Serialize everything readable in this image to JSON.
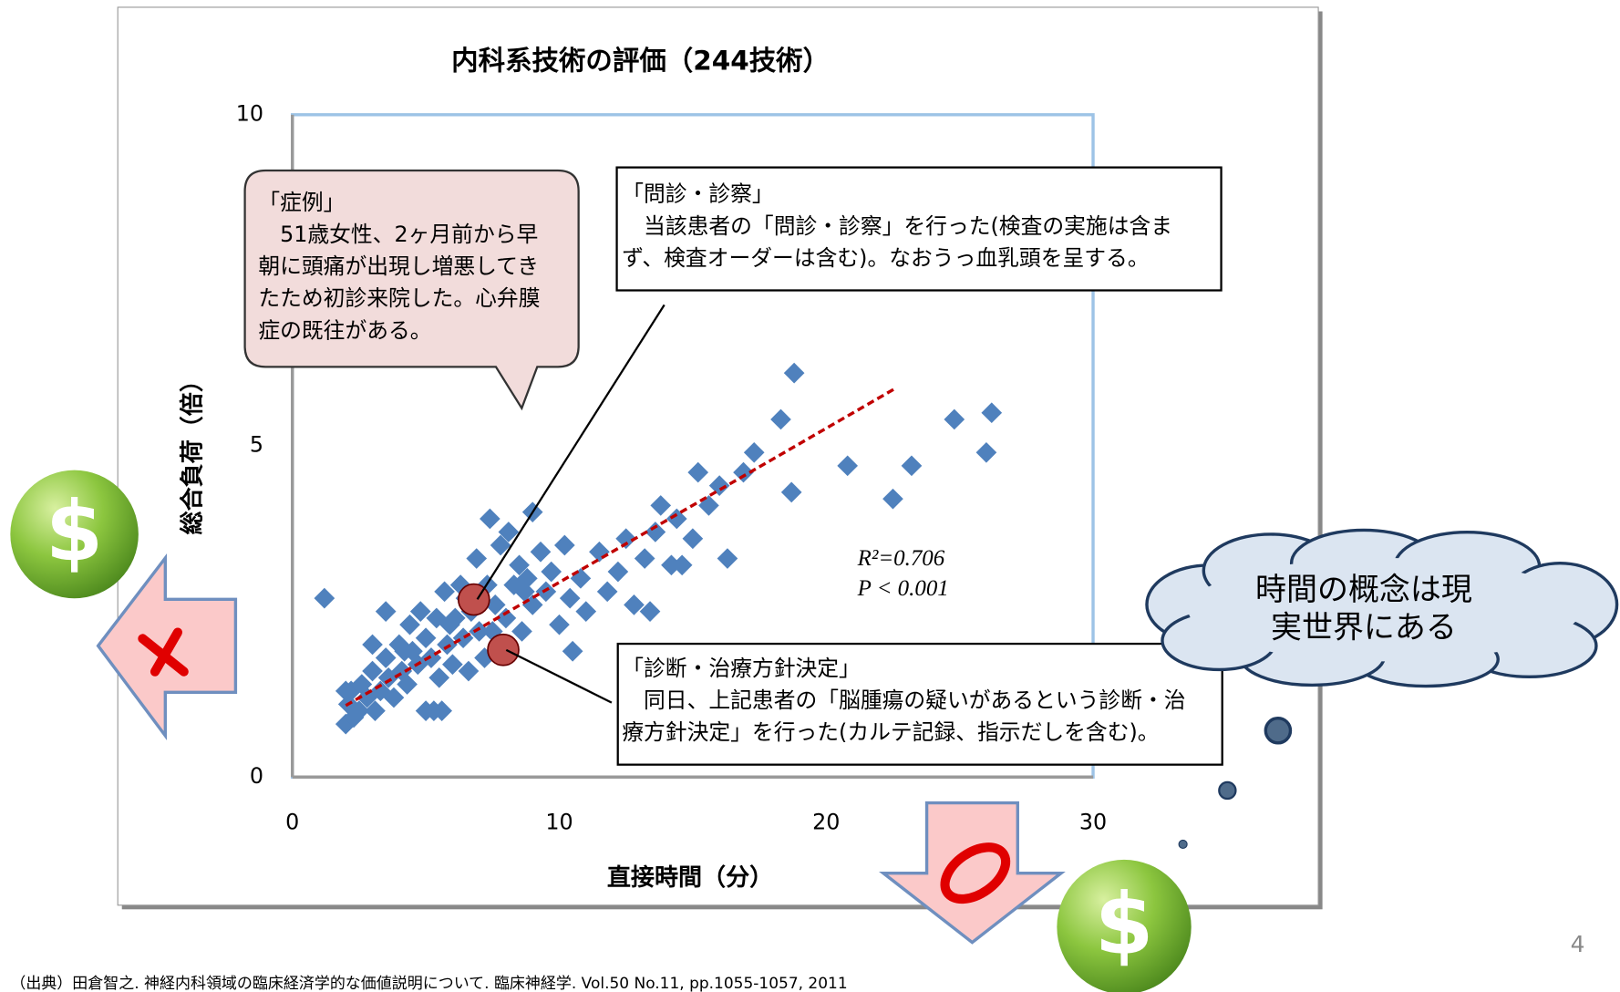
{
  "chart_data": {
    "type": "scatter",
    "title": "内科系技術の評価（244技術）",
    "x_label": "直接時間（分）",
    "y_label": "総合負荷（倍）",
    "xlim": [
      0,
      30
    ],
    "xticks": [
      0,
      10,
      20,
      30
    ],
    "ylim": [
      0,
      10
    ],
    "yticks": [
      0,
      5,
      10
    ],
    "color": "#4f81bd",
    "x": [
      2.0,
      2.1,
      2.2,
      2.0,
      2.3,
      2.5,
      2.6,
      2.8,
      3.0,
      3.1,
      3.3,
      3.5,
      3.6,
      3.8,
      4.0,
      4.1,
      4.3,
      4.4,
      4.5,
      4.7,
      4.8,
      5.0,
      5.0,
      5.3,
      5.6,
      5.2,
      5.4,
      5.5,
      5.7,
      5.8,
      6.0,
      6.1,
      6.3,
      6.4,
      6.6,
      6.7,
      6.9,
      7.0,
      7.2,
      7.3,
      7.4,
      7.6,
      7.8,
      8.0,
      8.1,
      8.3,
      8.5,
      8.6,
      8.8,
      9.0,
      9.0,
      9.3,
      9.5,
      9.7,
      10.2,
      10.0,
      10.4,
      10.8,
      10.5,
      11.0,
      11.5,
      11.8,
      12.2,
      12.5,
      12.8,
      13.2,
      13.6,
      13.4,
      13.8,
      14.2,
      14.6,
      14.4,
      15.0,
      15.2,
      15.6,
      16.0,
      16.3,
      16.9,
      17.3,
      18.3,
      18.7,
      18.8,
      20.8,
      22.5,
      23.2,
      24.8,
      26.0,
      26.2,
      1.2,
      3.0,
      3.5,
      4.2,
      5.9,
      6.5,
      7.5,
      8.7
    ],
    "values": [
      0.8,
      1.1,
      1.3,
      1.3,
      0.9,
      1.0,
      1.4,
      1.2,
      1.6,
      1.0,
      1.3,
      1.8,
      1.5,
      1.2,
      2.0,
      1.6,
      1.4,
      2.3,
      1.9,
      1.7,
      2.5,
      2.1,
      1.0,
      1.0,
      1.0,
      1.8,
      2.4,
      1.5,
      2.8,
      2.0,
      1.7,
      2.4,
      2.9,
      2.1,
      1.6,
      2.5,
      3.3,
      2.2,
      1.8,
      2.9,
      3.9,
      2.6,
      3.5,
      2.4,
      3.7,
      2.9,
      3.2,
      2.2,
      3.0,
      4.0,
      2.6,
      3.4,
      2.8,
      3.1,
      3.5,
      2.3,
      2.7,
      3.0,
      1.9,
      2.5,
      3.4,
      2.8,
      3.1,
      3.6,
      2.6,
      3.3,
      3.7,
      2.5,
      4.1,
      3.2,
      3.2,
      3.9,
      3.6,
      4.6,
      4.1,
      4.4,
      3.3,
      4.6,
      4.9,
      5.4,
      4.3,
      6.1,
      4.7,
      4.2,
      4.7,
      5.4,
      4.9,
      5.5,
      2.7,
      2.0,
      2.5,
      1.9,
      2.3,
      2.7,
      2.2,
      2.8
    ],
    "highlights": {
      "x": [
        6.8,
        7.9
      ],
      "values": [
        2.68,
        1.92
      ],
      "color": "#c0504d"
    },
    "trendline": {
      "x": [
        2.0,
        22.6
      ],
      "values": [
        1.08,
        5.87
      ],
      "color": "#c00000"
    },
    "stats": [
      "R²=0.706",
      "P < 0.001"
    ],
    "annotations": [
      {
        "lines": [
          "「症例」",
          "　51歳女性、2ヶ月前から早",
          "朝に頭痛が出現し増悪してき",
          "たため初診来院した。心弁膜",
          "症の既往がある。"
        ]
      },
      {
        "lines": [
          "「問診・診察」",
          "　当該患者の「問診・診察」を行った(検査の実施は含ま",
          "ず、検査オーダーは含む)。なおうっ血乳頭を呈する。"
        ]
      },
      {
        "lines": [
          "「診断・治療方針決定」",
          "　同日、上記患者の「脳腫瘍の疑いがあるという診断・治",
          "療方針決定」を行った(カルテ記録、指示だしを含む)。"
        ]
      }
    ]
  },
  "cloud_text": [
    "時間の概念は現",
    "実世界にある"
  ],
  "coin_symbol": "$",
  "source": "（出典）田倉智之. 神経内科領域の臨床経済学的な価値説明について. 臨床神経学. Vol.50 No.11, pp.1055-1057, 2011",
  "page_number": "4"
}
